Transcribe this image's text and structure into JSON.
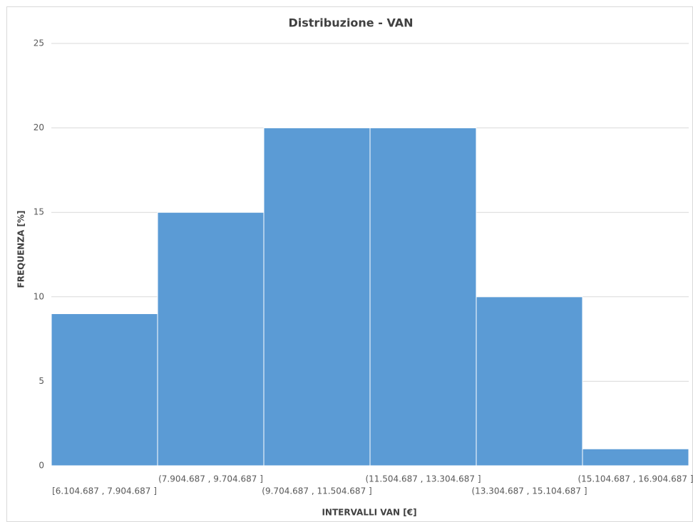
{
  "chart_data": {
    "type": "bar",
    "title": "Distribuzione - VAN",
    "x_label": "INTERVALLI VAN [€]",
    "y_label": "FREQUENZA [%]",
    "categories": [
      "[6.104.687 , 7.904.687 ]",
      "(7.904.687 , 9.704.687 ]",
      "(9.704.687 , 11.504.687 ]",
      "(11.504.687 , 13.304.687 ]",
      "(13.304.687 , 15.104.687 ]",
      "(15.104.687 , 16.904.687 ]"
    ],
    "values": [
      9,
      15,
      20,
      20,
      10,
      1
    ],
    "color": "#5b9bd5",
    "ylim": [
      0,
      25
    ],
    "yticks": [
      0,
      5,
      10,
      15,
      20,
      25
    ],
    "grid": true
  }
}
